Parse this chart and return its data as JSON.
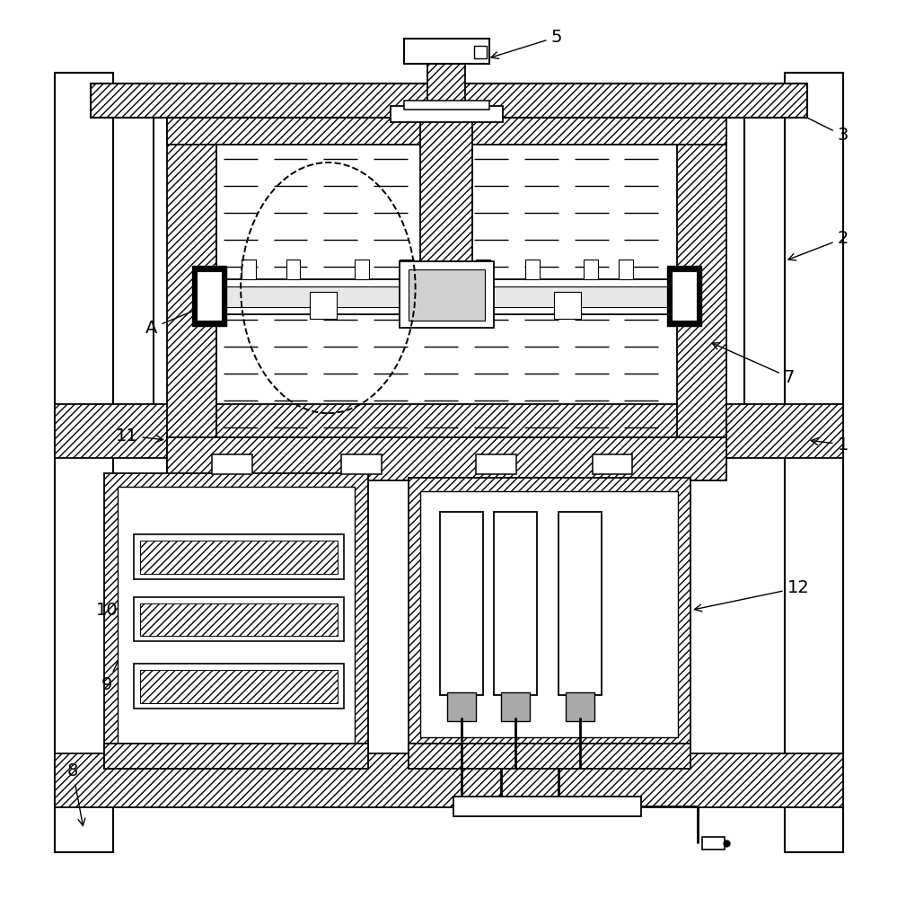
{
  "bg_color": "#ffffff",
  "line_color": "#000000",
  "fig_w": 9.99,
  "fig_h": 10.0,
  "dpi": 100
}
